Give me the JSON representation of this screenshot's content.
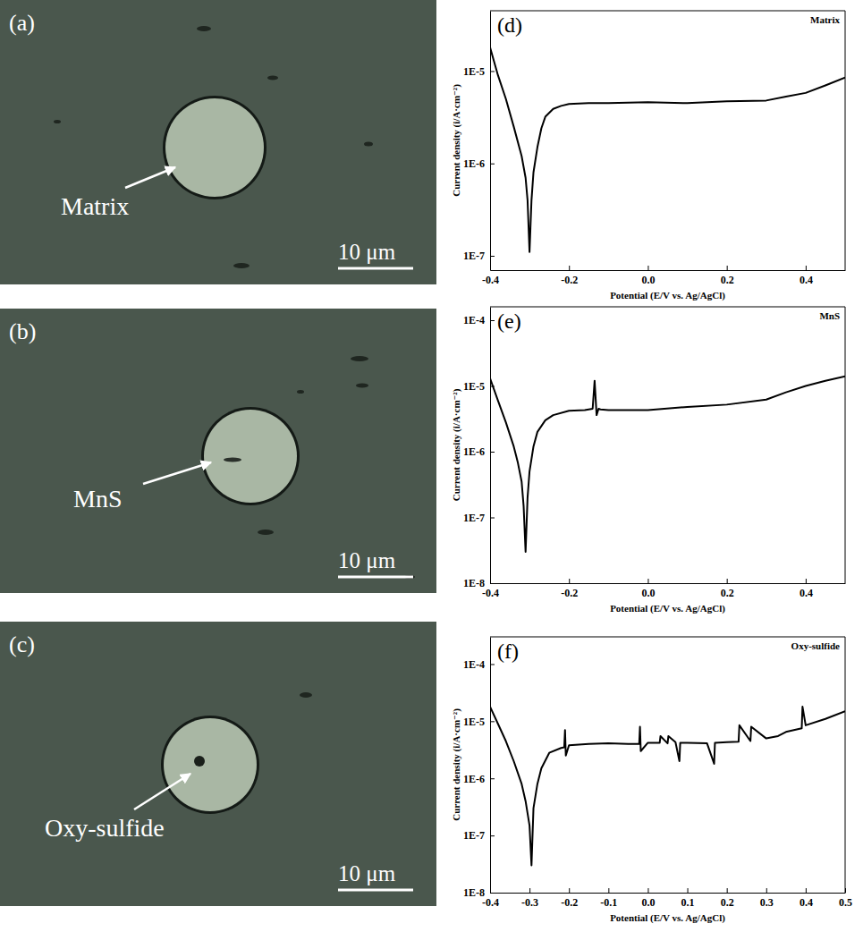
{
  "micrographs": [
    {
      "panel_label": "(a)",
      "annotation": "Matrix",
      "scale_bar": "10 μm"
    },
    {
      "panel_label": "(b)",
      "annotation": "MnS",
      "scale_bar": "10 μm"
    },
    {
      "panel_label": "(c)",
      "annotation": "Oxy-sulfide",
      "scale_bar": "10 μm"
    }
  ],
  "chart_data": [
    {
      "type": "line",
      "panel_label": "(d)",
      "title": "Matrix",
      "x_label": "Potential (E/V vs. Ag/AgCl)",
      "y_label": "Current density (i/A·cm⁻²)",
      "log": "y",
      "color": "#000000",
      "xlim": [
        -0.4,
        0.5
      ],
      "xticks": [
        -0.4,
        -0.2,
        {
          "value": 0,
          "label": "0.0"
        },
        0.2,
        0.4
      ],
      "ylim": [
        7e-08,
        4.5e-05
      ],
      "yticks": [
        {
          "value": 1e-07,
          "label": "1E-7"
        },
        {
          "value": 1e-06,
          "label": "1E-6"
        },
        {
          "value": 1e-05,
          "label": "1E-5"
        }
      ],
      "x": [
        -0.4,
        -0.38,
        -0.36,
        -0.34,
        -0.32,
        -0.31,
        -0.305,
        -0.3,
        -0.295,
        -0.29,
        -0.28,
        -0.27,
        -0.26,
        -0.24,
        -0.22,
        -0.2,
        -0.15,
        -0.1,
        0,
        0.1,
        0.2,
        0.3,
        0.35,
        0.4,
        0.45,
        0.5
      ],
      "values": [
        1.8e-05,
        9e-06,
        5e-06,
        2.5e-06,
        1.2e-06,
        7e-07,
        4e-07,
        1.1e-07,
        4e-07,
        8e-07,
        1.5e-06,
        2.4e-06,
        3.2e-06,
        3.9e-06,
        4.2e-06,
        4.4e-06,
        4.5e-06,
        4.5e-06,
        4.6e-06,
        4.5e-06,
        4.7e-06,
        4.8e-06,
        5.3e-06,
        5.8e-06,
        7e-06,
        8.5e-06
      ]
    },
    {
      "type": "line",
      "panel_label": "(e)",
      "title": "MnS",
      "x_label": "Potential (E/V vs. Ag/AgCl)",
      "y_label": "Current density (i/A·cm⁻²)",
      "log": "y",
      "color": "#000000",
      "xlim": [
        -0.4,
        0.5
      ],
      "xticks": [
        -0.4,
        -0.2,
        {
          "value": 0,
          "label": "0.0"
        },
        0.2,
        0.4
      ],
      "ylim": [
        1e-08,
        0.00016
      ],
      "yticks": [
        {
          "value": 1e-08,
          "label": "1E-8"
        },
        {
          "value": 1e-07,
          "label": "1E-7"
        },
        {
          "value": 1e-06,
          "label": "1E-6"
        },
        {
          "value": 1e-05,
          "label": "1E-5"
        },
        {
          "value": 0.0001,
          "label": "1E-4"
        }
      ],
      "x": [
        -0.4,
        -0.38,
        -0.36,
        -0.34,
        -0.33,
        -0.32,
        -0.315,
        -0.31,
        -0.305,
        -0.3,
        -0.29,
        -0.28,
        -0.26,
        -0.24,
        -0.2,
        -0.16,
        -0.14,
        -0.135,
        -0.13,
        -0.125,
        -0.12,
        -0.1,
        0,
        0.1,
        0.2,
        0.3,
        0.35,
        0.4,
        0.45,
        0.5
      ],
      "values": [
        1.3e-05,
        6e-06,
        2.8e-06,
        1.2e-06,
        7e-07,
        3.5e-07,
        1.5e-07,
        3e-08,
        2e-07,
        5e-07,
        1.2e-06,
        2e-06,
        3e-06,
        3.6e-06,
        4.2e-06,
        4.3e-06,
        4.5e-06,
        1.2e-05,
        3.6e-06,
        4.5e-06,
        4.4e-06,
        4.3e-06,
        4.3e-06,
        4.8e-06,
        5.2e-06,
        6.2e-06,
        8e-06,
        1e-05,
        1.2e-05,
        1.4e-05
      ]
    },
    {
      "type": "line",
      "panel_label": "(f)",
      "title": "Oxy-sulfide",
      "x_label": "Potential (E/V vs. Ag/AgCl)",
      "y_label": "Current density (i/A·cm⁻²)",
      "log": "y",
      "color": "#000000",
      "xlim": [
        -0.4,
        0.5
      ],
      "xticks": [
        -0.4,
        -0.3,
        -0.2,
        -0.1,
        {
          "value": 0,
          "label": "0.0"
        },
        0.1,
        0.2,
        0.3,
        0.4,
        0.5
      ],
      "ylim": [
        1e-08,
        0.0003
      ],
      "yticks": [
        {
          "value": 1e-08,
          "label": "1E-8"
        },
        {
          "value": 1e-07,
          "label": "1E-7"
        },
        {
          "value": 1e-06,
          "label": "1E-6"
        },
        {
          "value": 1e-05,
          "label": "1E-5"
        },
        {
          "value": 0.0001,
          "label": "1E-4"
        }
      ],
      "x": [
        -0.4,
        -0.38,
        -0.36,
        -0.34,
        -0.32,
        -0.31,
        -0.3,
        -0.295,
        -0.29,
        -0.28,
        -0.27,
        -0.25,
        -0.22,
        -0.212,
        -0.21,
        -0.208,
        -0.2,
        -0.15,
        -0.1,
        -0.05,
        -0.022,
        -0.02,
        -0.018,
        0.0,
        0.03,
        0.032,
        0.05,
        0.052,
        0.07,
        0.08,
        0.082,
        0.1,
        0.15,
        0.168,
        0.17,
        0.2,
        0.23,
        0.232,
        0.26,
        0.262,
        0.3,
        0.33,
        0.35,
        0.39,
        0.392,
        0.4,
        0.45,
        0.5
      ],
      "values": [
        1.8e-05,
        9e-06,
        4.5e-06,
        2e-06,
        8e-07,
        4e-07,
        1.5e-07,
        3e-08,
        3e-07,
        8e-07,
        1.5e-06,
        2.8e-06,
        3.4e-06,
        3.5e-06,
        7e-06,
        2.5e-06,
        3.8e-06,
        4e-06,
        4.1e-06,
        4e-06,
        4e-06,
        8e-06,
        3e-06,
        4.2e-06,
        4.2e-06,
        5.5e-06,
        4.1e-06,
        5.5e-06,
        4.3e-06,
        2e-06,
        4.2e-06,
        4.2e-06,
        4.1e-06,
        1.8e-06,
        4.2e-06,
        4.3e-06,
        4.4e-06,
        8.5e-06,
        4.5e-06,
        8e-06,
        5e-06,
        5.5e-06,
        6.5e-06,
        7.5e-06,
        1.8e-05,
        8.5e-06,
        1.1e-05,
        1.5e-05
      ]
    }
  ]
}
